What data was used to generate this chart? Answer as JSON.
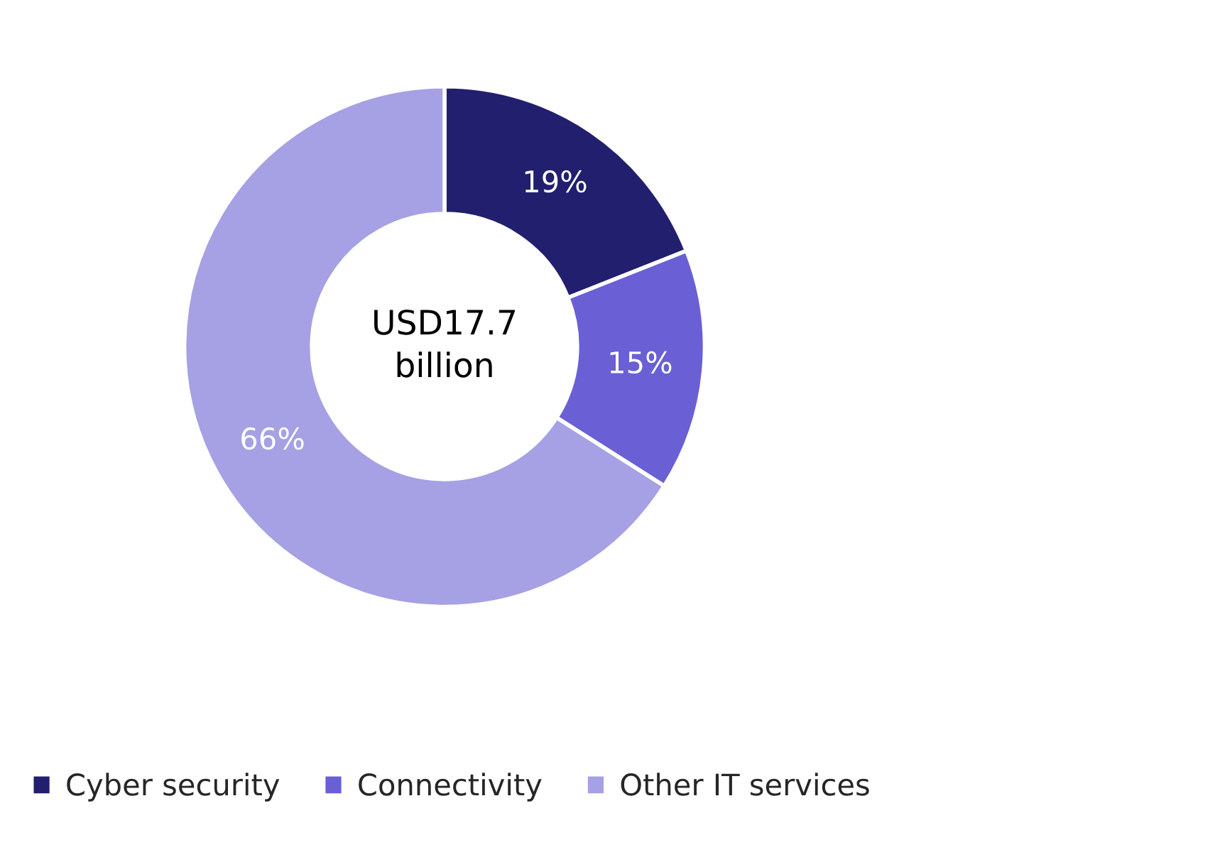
{
  "chart_data": {
    "type": "donut",
    "categories": [
      "Cyber security",
      "Connectivity",
      "Other IT services"
    ],
    "values": [
      19,
      15,
      66
    ],
    "colors": [
      "#221f6e",
      "#6a5fd4",
      "#a6a0e4"
    ],
    "value_labels": [
      "19%",
      "15%",
      "66%"
    ],
    "annotations": [
      "USD17.7\nbillion"
    ],
    "legend": "bottom"
  }
}
